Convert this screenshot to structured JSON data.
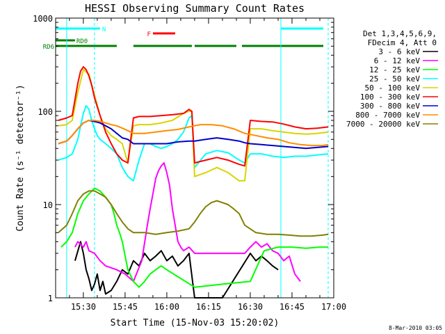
{
  "chart_data": {
    "type": "line",
    "title": "HESSI Observing Summary Count Rates",
    "xlabel": "Start Time (15-Nov-03 15:20:02)",
    "ylabel": "Count Rate (s⁻¹ detector⁻¹)",
    "y_scale": "log",
    "ylim": [
      1,
      1000
    ],
    "xlim": [
      "15:20:02",
      "17:00:00"
    ],
    "x_ticks": [
      "15:30",
      "15:45",
      "16:00",
      "16:15",
      "16:30",
      "16:45",
      "17:00"
    ],
    "y_ticks": [
      "1",
      "10",
      "100",
      "1000"
    ],
    "footer": "8-Mar-2010 03:05",
    "legend": {
      "placement": "right",
      "header": [
        "Det 1,3,4,5,6,9,",
        "FDecim 4, Att 0"
      ],
      "entries": [
        {
          "label": "3 - 6 keV",
          "color": "#000000"
        },
        {
          "label": "6 - 12 keV",
          "color": "#ff00ff"
        },
        {
          "label": "12 - 25 keV",
          "color": "#00ff00"
        },
        {
          "label": "25 - 50 keV",
          "color": "#00ffff"
        },
        {
          "label": "50 - 100 keV",
          "color": "#d6d600"
        },
        {
          "label": "100 - 300 keV",
          "color": "#ff0000"
        },
        {
          "label": "300 - 800 keV",
          "color": "#0000c8"
        },
        {
          "label": "800 - 7000 keV",
          "color": "#ff8c00"
        },
        {
          "label": "7000 - 20000 keV",
          "color": "#808000"
        }
      ]
    },
    "flag_bars": [
      {
        "label": "N",
        "color": "#00ffff",
        "row": 0,
        "segments": [
          [
            "15:20",
            "15:36"
          ],
          [
            "16:41",
            "16:58"
          ]
        ]
      },
      {
        "label": "F",
        "color": "#ff0000",
        "row": 1,
        "segments": [
          [
            "15:55",
            "16:03"
          ]
        ]
      },
      {
        "label": "RD0",
        "color": "#008000",
        "row": 2,
        "segments": [
          [
            "15:20",
            "15:27"
          ]
        ]
      },
      {
        "label": "RD6",
        "color": "#008000",
        "row": 3,
        "segments": [
          [
            "15:20",
            "15:42"
          ],
          [
            "15:48",
            "16:09"
          ],
          [
            "16:10",
            "16:25"
          ],
          [
            "16:27",
            "16:58"
          ]
        ]
      }
    ],
    "vertical_markers": [
      {
        "time": "15:24",
        "color": "#00ffff",
        "style": "solid"
      },
      {
        "time": "15:34",
        "color": "#00ffff",
        "style": "dashed"
      },
      {
        "time": "16:41",
        "color": "#00ffff",
        "style": "solid"
      },
      {
        "time": "16:58",
        "color": "#00ffff",
        "style": "dashed"
      }
    ],
    "series": [
      {
        "name": "3 - 6 keV",
        "color": "#000000",
        "x": [
          "15:27",
          "15:29",
          "15:30",
          "15:31",
          "15:32",
          "15:33",
          "15:34",
          "15:35",
          "15:36",
          "15:37",
          "15:38",
          "15:40",
          "15:42",
          "15:44",
          "15:46",
          "15:48",
          "15:50",
          "15:52",
          "15:54",
          "15:56",
          "15:58",
          "16:00",
          "16:02",
          "16:04",
          "16:06",
          "16:08",
          "16:10",
          "16:20",
          "16:30",
          "16:32",
          "16:34",
          "16:36",
          "16:38",
          "16:40"
        ],
        "y": [
          2.5,
          4,
          3,
          2,
          1.6,
          1.2,
          1.4,
          1.8,
          1.2,
          1.5,
          1.1,
          1.2,
          1.5,
          2,
          1.8,
          2.5,
          2.2,
          3,
          2.5,
          2.8,
          3.2,
          2.5,
          2.8,
          2.2,
          2.5,
          3,
          1,
          1,
          3,
          2.5,
          2.8,
          2.5,
          2.2,
          2
        ]
      },
      {
        "name": "6 - 12 keV",
        "color": "#ff00ff",
        "x": [
          "15:27",
          "15:28",
          "15:30",
          "15:31",
          "15:32",
          "15:34",
          "15:36",
          "15:38",
          "15:42",
          "15:45",
          "15:48",
          "15:51",
          "15:53",
          "15:54",
          "15:55",
          "15:56",
          "15:57",
          "15:58",
          "15:59",
          "16:00",
          "16:01",
          "16:02",
          "16:03",
          "16:04",
          "16:05",
          "16:06",
          "16:08",
          "16:10",
          "16:28",
          "16:30",
          "16:32",
          "16:34",
          "16:36",
          "16:38",
          "16:40",
          "16:42",
          "16:44",
          "16:46",
          "16:48"
        ],
        "y": [
          3.5,
          4,
          3.5,
          4,
          3.2,
          3,
          2.5,
          2.2,
          2,
          1.8,
          1.5,
          2.5,
          6,
          9,
          13,
          19,
          23,
          26,
          28,
          22,
          16,
          9,
          6,
          4,
          3.5,
          3.2,
          3.5,
          3,
          3,
          3.5,
          4,
          3.5,
          3.8,
          3.2,
          3,
          2.5,
          2.8,
          1.8,
          1.5
        ]
      },
      {
        "name": "12 - 25 keV",
        "color": "#00ff00",
        "x": [
          "15:22",
          "15:24",
          "15:26",
          "15:28",
          "15:30",
          "15:32",
          "15:34",
          "15:36",
          "15:38",
          "15:40",
          "15:41",
          "15:42",
          "15:43",
          "15:44",
          "15:46",
          "15:48",
          "15:50",
          "15:52",
          "15:54",
          "15:56",
          "15:58",
          "16:00",
          "16:10",
          "16:20",
          "16:30",
          "16:35",
          "16:40",
          "16:45",
          "16:50",
          "16:55",
          "16:58"
        ],
        "y": [
          3.5,
          4,
          5,
          8,
          11,
          13,
          15,
          14,
          12,
          10,
          8,
          6,
          5,
          4,
          2,
          1.5,
          1.3,
          1.5,
          1.8,
          2,
          2.2,
          2,
          1.3,
          1.4,
          1.5,
          3.2,
          3.5,
          3.5,
          3.4,
          3.5,
          3.5
        ]
      },
      {
        "name": "25 - 50 keV",
        "color": "#00ffff",
        "x": [
          "15:21",
          "15:24",
          "15:26",
          "15:28",
          "15:29",
          "15:30",
          "15:31",
          "15:32",
          "15:33",
          "15:34",
          "15:35",
          "15:36",
          "15:38",
          "15:40",
          "15:42",
          "15:44",
          "15:46",
          "15:48",
          "15:50",
          "15:52",
          "15:54",
          "15:56",
          "15:58",
          "16:00",
          "16:02",
          "16:04",
          "16:06",
          "16:08",
          "16:09",
          "16:10",
          "16:14",
          "16:18",
          "16:22",
          "16:26",
          "16:28",
          "16:30",
          "16:34",
          "16:38",
          "16:42",
          "16:46",
          "16:50",
          "16:54",
          "16:58"
        ],
        "y": [
          30,
          32,
          35,
          50,
          70,
          95,
          115,
          105,
          80,
          65,
          55,
          50,
          45,
          40,
          35,
          25,
          20,
          18,
          30,
          45,
          45,
          42,
          40,
          42,
          45,
          50,
          60,
          85,
          90,
          25,
          35,
          38,
          36,
          30,
          28,
          35,
          35,
          33,
          32,
          33,
          33,
          34,
          35
        ]
      },
      {
        "name": "50 - 100 keV",
        "color": "#d6d600",
        "x": [
          "15:21",
          "15:24",
          "15:26",
          "15:28",
          "15:30",
          "15:32",
          "15:34",
          "15:36",
          "15:38",
          "15:40",
          "15:42",
          "15:44",
          "15:46",
          "15:48",
          "15:50",
          "15:54",
          "15:58",
          "16:02",
          "16:06",
          "16:08",
          "16:09",
          "16:10",
          "16:14",
          "16:18",
          "16:22",
          "16:26",
          "16:28",
          "16:30",
          "16:34",
          "16:38",
          "16:42",
          "16:46",
          "16:50",
          "16:54",
          "16:58"
        ],
        "y": [
          70,
          72,
          80,
          160,
          280,
          250,
          150,
          90,
          65,
          55,
          50,
          45,
          28,
          70,
          72,
          72,
          75,
          80,
          95,
          100,
          100,
          20,
          22,
          25,
          22,
          18,
          18,
          65,
          65,
          62,
          60,
          58,
          57,
          58,
          60
        ]
      },
      {
        "name": "100 - 300 keV",
        "color": "#ff0000",
        "x": [
          "15:21",
          "15:24",
          "15:26",
          "15:28",
          "15:29",
          "15:30",
          "15:31",
          "15:32",
          "15:33",
          "15:34",
          "15:36",
          "15:38",
          "15:40",
          "15:42",
          "15:44",
          "15:46",
          "15:48",
          "15:50",
          "15:54",
          "15:58",
          "16:02",
          "16:06",
          "16:08",
          "16:09",
          "16:10",
          "16:14",
          "16:18",
          "16:22",
          "16:26",
          "16:28",
          "16:30",
          "16:34",
          "16:38",
          "16:42",
          "16:46",
          "16:50",
          "16:54",
          "16:58"
        ],
        "y": [
          80,
          85,
          90,
          200,
          270,
          300,
          280,
          240,
          190,
          140,
          90,
          60,
          45,
          35,
          30,
          28,
          85,
          88,
          88,
          90,
          92,
          95,
          105,
          100,
          28,
          30,
          32,
          30,
          27,
          26,
          80,
          78,
          77,
          73,
          68,
          65,
          66,
          68
        ]
      },
      {
        "name": "300 - 800 keV",
        "color": "#0000c8",
        "x": [
          "15:21",
          "15:24",
          "15:26",
          "15:28",
          "15:30",
          "15:32",
          "15:34",
          "15:36",
          "15:38",
          "15:40",
          "15:42",
          "15:44",
          "15:46",
          "15:48",
          "15:52",
          "15:56",
          "16:00",
          "16:04",
          "16:08",
          "16:09",
          "16:10",
          "16:14",
          "16:18",
          "16:22",
          "16:26",
          "16:28",
          "16:30",
          "16:34",
          "16:38",
          "16:42",
          "16:46",
          "16:50",
          "16:54",
          "16:58"
        ],
        "y": [
          45,
          48,
          55,
          65,
          75,
          80,
          78,
          75,
          70,
          65,
          58,
          52,
          50,
          45,
          45,
          45,
          45,
          47,
          48,
          48,
          48,
          50,
          52,
          50,
          48,
          46,
          45,
          44,
          43,
          42,
          41,
          40,
          41,
          42
        ]
      },
      {
        "name": "800 - 7000 keV",
        "color": "#ff8c00",
        "x": [
          "15:21",
          "15:24",
          "15:26",
          "15:28",
          "15:30",
          "15:32",
          "15:34",
          "15:36",
          "15:38",
          "15:40",
          "15:42",
          "15:44",
          "15:46",
          "15:48",
          "15:52",
          "15:56",
          "16:00",
          "16:04",
          "16:08",
          "16:12",
          "16:16",
          "16:20",
          "16:24",
          "16:28",
          "16:32",
          "16:36",
          "16:40",
          "16:44",
          "16:48",
          "16:52",
          "16:56",
          "16:58"
        ],
        "y": [
          45,
          48,
          55,
          65,
          75,
          80,
          80,
          78,
          75,
          72,
          70,
          66,
          62,
          58,
          58,
          60,
          62,
          64,
          68,
          72,
          72,
          70,
          65,
          58,
          55,
          52,
          50,
          46,
          44,
          43,
          43,
          44
        ]
      },
      {
        "name": "7000 - 20000 keV",
        "color": "#808000",
        "x": [
          "15:21",
          "15:24",
          "15:26",
          "15:28",
          "15:30",
          "15:32",
          "15:34",
          "15:36",
          "15:38",
          "15:40",
          "15:42",
          "15:44",
          "15:46",
          "15:48",
          "15:52",
          "15:56",
          "16:00",
          "16:04",
          "16:08",
          "16:10",
          "16:12",
          "16:14",
          "16:16",
          "16:18",
          "16:20",
          "16:22",
          "16:24",
          "16:26",
          "16:28",
          "16:32",
          "16:36",
          "16:40",
          "16:44",
          "16:48",
          "16:52",
          "16:56",
          "16:58"
        ],
        "y": [
          5,
          6,
          8,
          11,
          13,
          14,
          14,
          13,
          12,
          10,
          8,
          6.5,
          5.5,
          5,
          5,
          4.8,
          5,
          5.2,
          5.5,
          6.5,
          8,
          9.5,
          10.5,
          11,
          10.5,
          10,
          9,
          8,
          6,
          5,
          4.8,
          4.8,
          4.7,
          4.6,
          4.6,
          4.7,
          4.8
        ]
      }
    ]
  }
}
